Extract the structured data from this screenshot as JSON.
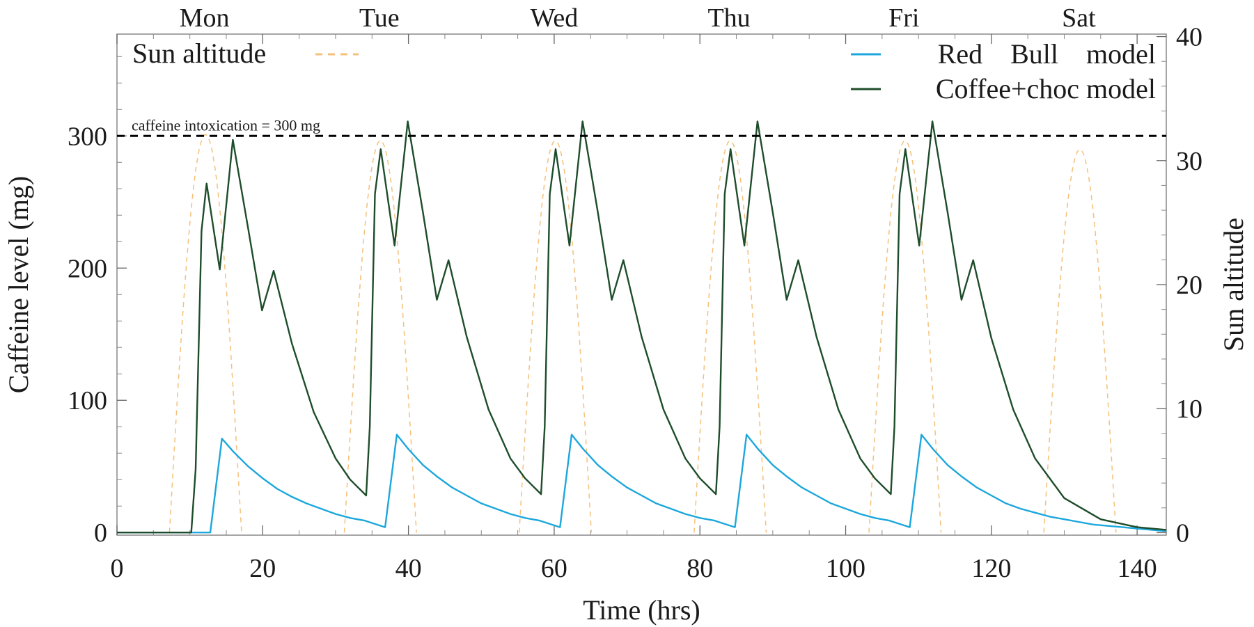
{
  "chart_data": {
    "type": "line",
    "xlabel": "Time (hrs)",
    "ylabel": "Caffeine level (mg)",
    "y2label": "Sun altitude",
    "xlim": [
      0,
      144
    ],
    "ylim": [
      -2,
      377
    ],
    "y2lim": [
      -0.2,
      40.2
    ],
    "x_ticks": [
      0,
      20,
      40,
      60,
      80,
      100,
      120,
      140
    ],
    "y_ticks": [
      0,
      100,
      200,
      300
    ],
    "y2_ticks": [
      0,
      10,
      20,
      30,
      40
    ],
    "grid": false,
    "day_labels": [
      {
        "label": "Mon",
        "x": 12
      },
      {
        "label": "Tue",
        "x": 36
      },
      {
        "label": "Wed",
        "x": 60
      },
      {
        "label": "Thu",
        "x": 84
      },
      {
        "label": "Fri",
        "x": 108
      },
      {
        "label": "Sat",
        "x": 132
      }
    ],
    "threshold": {
      "y": 300,
      "label": "caffeine intoxication = 300 mg"
    },
    "legend_left": {
      "label": "Sun altitude",
      "placement": "top-left"
    },
    "legend_right": {
      "placement": "top-right",
      "items": [
        {
          "label": "Red    Bull    model",
          "series": "redbull"
        },
        {
          "label": "Coffee+choc model",
          "series": "coffee"
        }
      ]
    },
    "colors": {
      "redbull": "#1ca7dc",
      "coffee": "#1e4d2b",
      "sun": "#f5c07a",
      "threshold": "#000000"
    },
    "series": [
      {
        "name": "Red    Bull    model",
        "id": "redbull",
        "axis": "left",
        "x": [
          0,
          12.8,
          14.4,
          16,
          18,
          20,
          22,
          24,
          26,
          28,
          30,
          32,
          34,
          36.8,
          38.4,
          40,
          42,
          44,
          46,
          48,
          50,
          52,
          54,
          56,
          58,
          60.8,
          62.4,
          64,
          66,
          68,
          70,
          72,
          74,
          76,
          78,
          80,
          82,
          84.8,
          86.4,
          88,
          90,
          92,
          94,
          96,
          98,
          100,
          102,
          104,
          106,
          108.8,
          110.4,
          112,
          114,
          116,
          118,
          120,
          122,
          124,
          126,
          128,
          130,
          132,
          134,
          136,
          138,
          140,
          142,
          144
        ],
        "y": [
          0,
          0,
          71,
          61,
          50,
          41,
          33,
          27,
          22,
          18,
          14,
          11,
          9,
          4,
          74,
          63,
          51,
          42,
          34,
          28,
          22,
          18,
          14,
          11,
          9,
          4,
          74,
          63,
          51,
          42,
          34,
          28,
          22,
          18,
          14,
          11,
          9,
          4,
          74,
          63,
          51,
          42,
          34,
          28,
          22,
          18,
          14,
          11,
          9,
          4,
          74,
          63,
          51,
          42,
          34,
          28,
          22,
          18,
          15,
          12,
          10,
          8,
          6,
          5,
          4,
          3,
          2,
          1
        ]
      },
      {
        "name": "Coffee+choc model",
        "id": "coffee",
        "axis": "left",
        "x": [
          0,
          10.2,
          10.8,
          11.6,
          12.3,
          14.1,
          15.9,
          18,
          19.9,
          21.5,
          24,
          27,
          30,
          32,
          34.2,
          34.7,
          35.4,
          36.2,
          38.1,
          39.9,
          42,
          43.9,
          45.5,
          48,
          51,
          54,
          56,
          58.2,
          58.7,
          59.4,
          60.2,
          62.1,
          63.9,
          66,
          67.9,
          69.5,
          72,
          75,
          78,
          80,
          82.2,
          82.7,
          83.4,
          84.2,
          86.1,
          87.9,
          90,
          91.9,
          93.5,
          96,
          99,
          102,
          104,
          106.2,
          106.7,
          107.4,
          108.2,
          110.1,
          111.9,
          114,
          115.9,
          117.5,
          120,
          123,
          126,
          130,
          135,
          140,
          144
        ],
        "y": [
          0,
          0,
          48,
          228,
          264,
          199,
          297,
          230,
          168,
          198,
          143,
          91,
          56,
          40,
          28,
          80,
          256,
          290,
          217,
          311,
          242,
          176,
          206,
          148,
          93,
          56,
          41,
          29,
          80,
          256,
          290,
          217,
          311,
          242,
          176,
          206,
          148,
          93,
          56,
          41,
          29,
          80,
          256,
          290,
          217,
          311,
          242,
          176,
          206,
          148,
          93,
          56,
          41,
          29,
          80,
          256,
          290,
          217,
          311,
          242,
          176,
          206,
          147,
          93,
          56,
          26,
          10,
          4,
          2
        ]
      },
      {
        "name": "Sun altitude",
        "id": "sun",
        "axis": "right",
        "daylight_windows": [
          [
            7.2,
            17.1
          ],
          [
            31.2,
            41.1
          ],
          [
            55.2,
            65.1
          ],
          [
            79.2,
            89.1
          ],
          [
            103.2,
            113.1
          ],
          [
            127.2,
            137.1
          ]
        ],
        "peak_altitude": [
          32.1,
          31.6,
          31.6,
          31.6,
          31.6,
          30.9
        ]
      }
    ]
  }
}
